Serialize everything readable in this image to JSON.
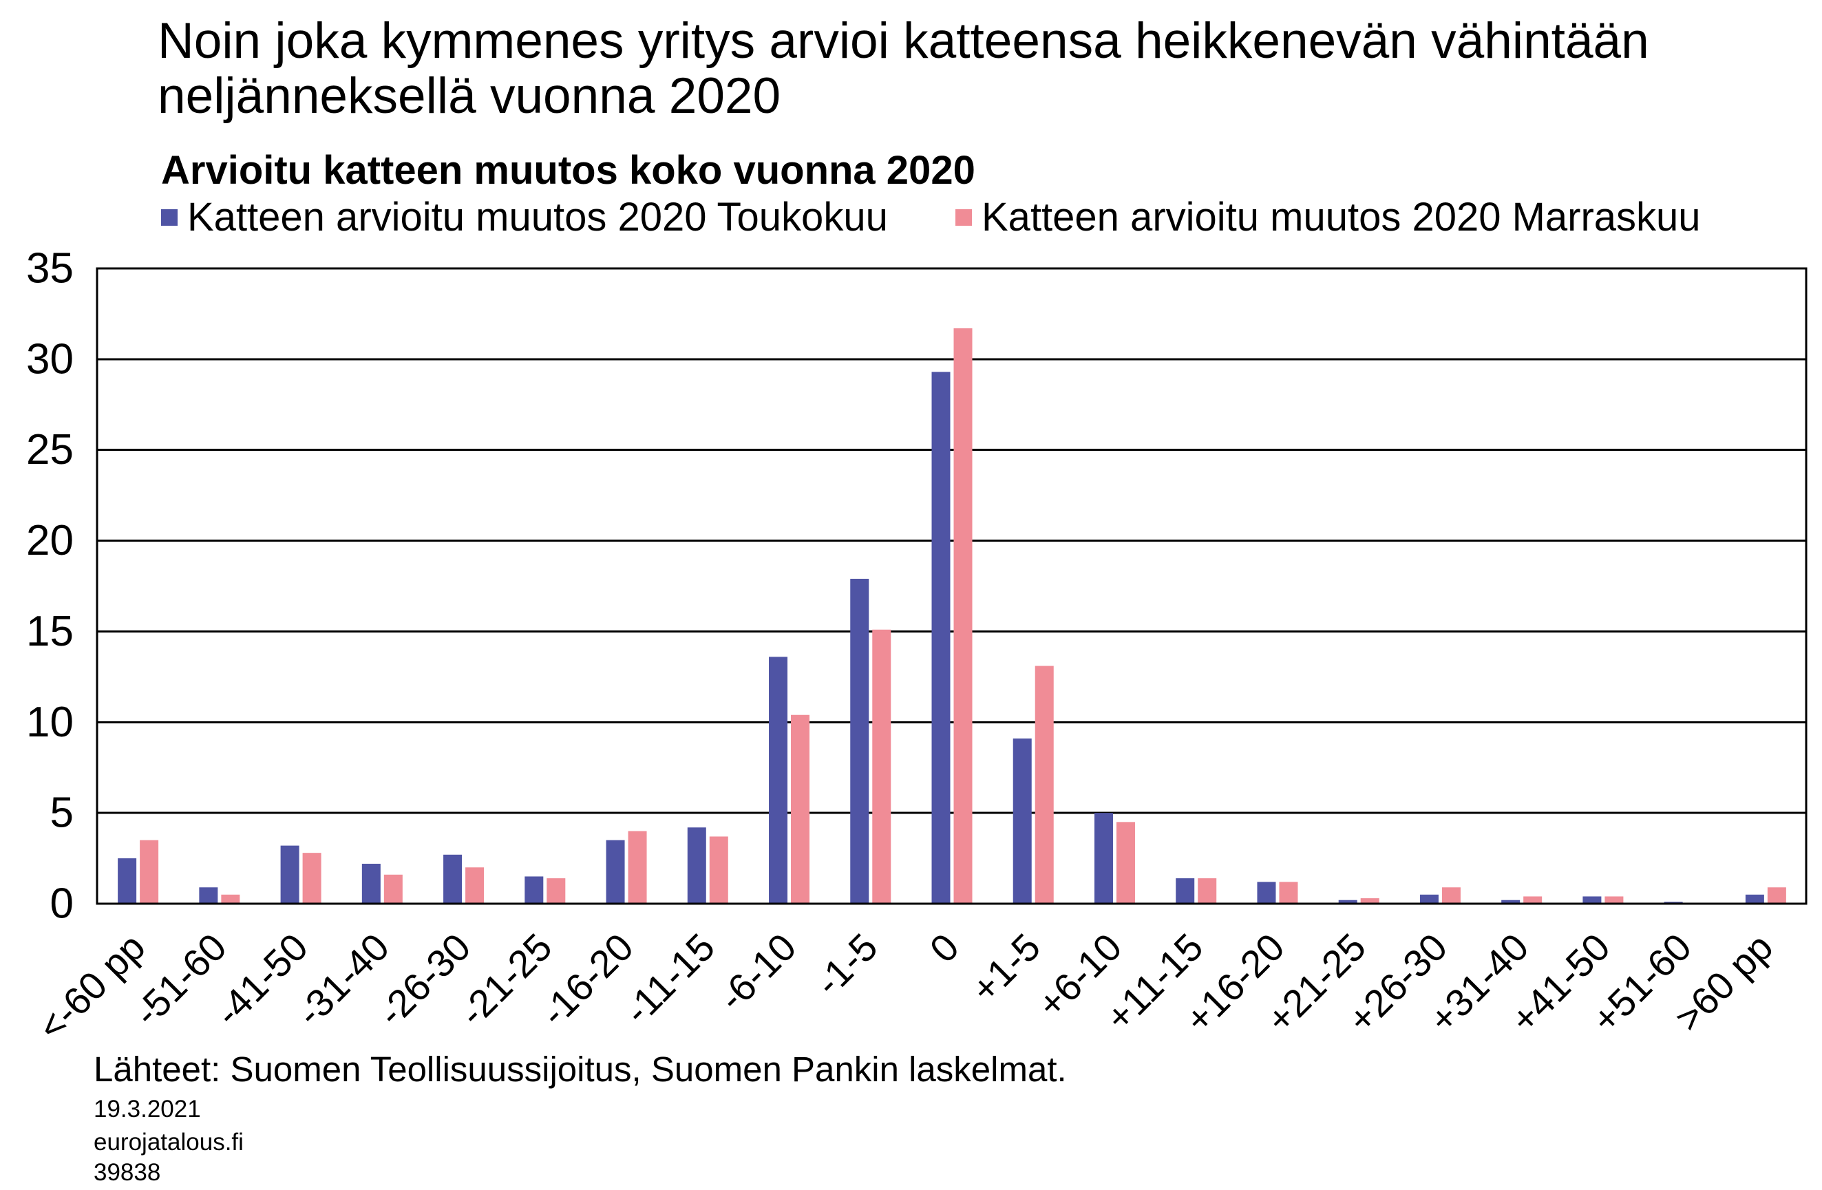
{
  "chart_data": {
    "type": "bar",
    "title": "Noin joka kymmenes yritys arvioi katteensa heikkenevän vähintään neljänneksellä vuonna 2020",
    "subtitle": "Arvioitu katteen muutos koko vuonna 2020",
    "categories": [
      "<-60 pp",
      "-51-60",
      "-41-50",
      "-31-40",
      "-26-30",
      "-21-25",
      "-16-20",
      "-11-15",
      "-6-10",
      "-1-5",
      "0",
      "+1-5",
      "+6-10",
      "+11-15",
      "+16-20",
      "+21-25",
      "+26-30",
      "+31-40",
      "+41-50",
      "+51-60",
      ">60 pp"
    ],
    "series": [
      {
        "name": "Katteen arvioitu muutos 2020 Toukokuu",
        "color": "#4f54a4",
        "values": [
          2.5,
          0.9,
          3.2,
          2.2,
          2.7,
          1.5,
          3.5,
          4.2,
          13.6,
          17.9,
          29.3,
          9.1,
          5.0,
          1.4,
          1.2,
          0.2,
          0.5,
          0.2,
          0.4,
          0.1,
          0.5
        ]
      },
      {
        "name": "Katteen arvioitu muutos 2020 Marraskuu",
        "color": "#f08c96",
        "values": [
          3.5,
          0.5,
          2.8,
          1.6,
          2.0,
          1.4,
          4.0,
          3.7,
          10.4,
          15.1,
          31.7,
          13.1,
          4.5,
          1.4,
          1.2,
          0.3,
          0.9,
          0.4,
          0.4,
          0.0,
          0.9
        ]
      }
    ],
    "ylim": [
      0,
      35
    ],
    "yticks": [
      0,
      5,
      10,
      15,
      20,
      25,
      30,
      35
    ],
    "grid": true,
    "grid_color": "#000000",
    "legend": "top"
  },
  "footer": {
    "source": "Lähteet: Suomen Teollisuussijoitus, Suomen Pankin laskelmat.",
    "date": "19.3.2021",
    "site": "eurojatalous.fi",
    "id": "39838"
  }
}
